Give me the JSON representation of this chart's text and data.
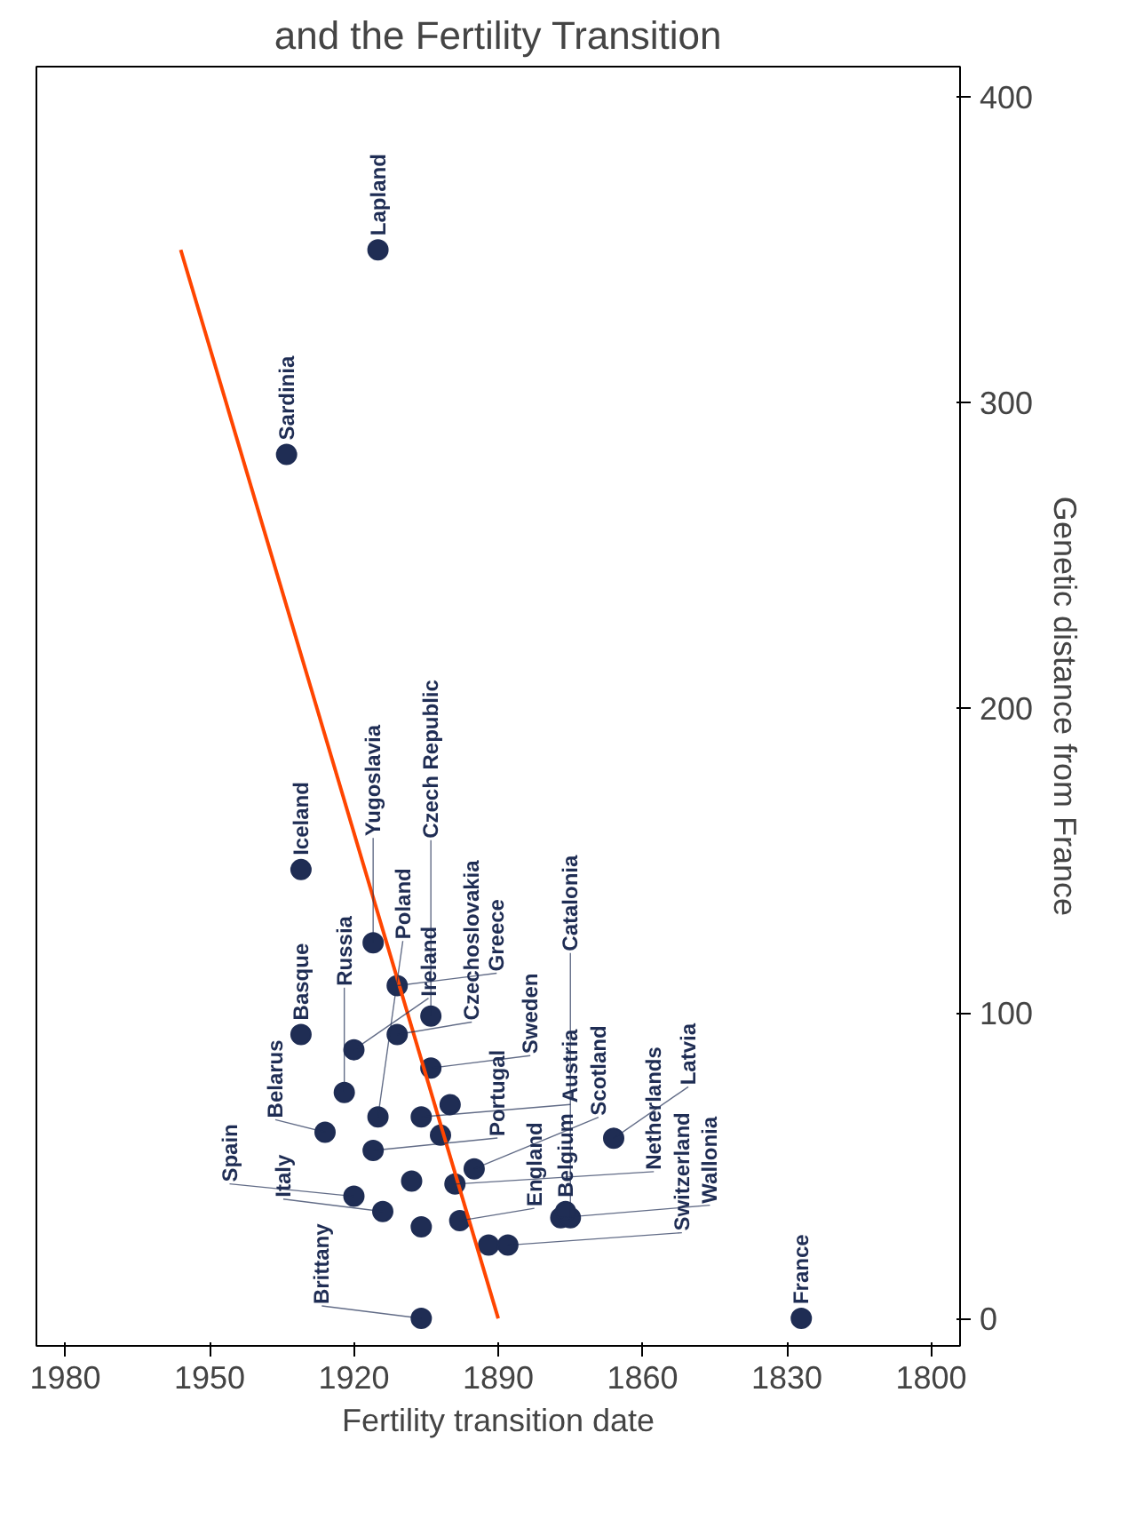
{
  "chart_data": {
    "type": "scatter",
    "title": "and the Fertility Transition",
    "xlabel": "Fertility transition date",
    "ylabel": "Genetic distance from France",
    "xlim": [
      1986,
      1794
    ],
    "xticks": [
      1980,
      1950,
      1920,
      1890,
      1860,
      1830,
      1800
    ],
    "ylim": [
      -9,
      410
    ],
    "yticks": [
      0,
      100,
      200,
      300,
      400
    ],
    "grid": false,
    "series": [
      {
        "marker": "circle",
        "color": "#1f2d54",
        "x": [
          1915,
          1934,
          1931,
          1931,
          1926,
          1922,
          1920,
          1920,
          1914,
          1916,
          1915,
          1911,
          1916,
          1911,
          1904,
          1904,
          1906,
          1906,
          1899,
          1898,
          1895,
          1888,
          1892,
          1877,
          1875,
          1876,
          1866,
          1827,
          1906,
          1902,
          1900,
          1908
        ],
        "values": [
          350,
          283,
          147,
          93,
          61,
          74,
          88,
          40,
          35,
          55,
          66,
          93,
          123,
          109,
          99,
          82,
          66,
          0,
          44,
          32,
          49,
          24,
          24,
          33,
          33,
          35,
          59,
          0,
          30,
          60,
          70,
          45
        ]
      },
      {
        "type": "line",
        "color": "#ff4500",
        "x": [
          1890,
          1956
        ],
        "values": [
          0,
          350
        ]
      }
    ],
    "annotations": [
      {
        "text": "Lapland",
        "x": 1915,
        "y": 350
      },
      {
        "text": "Sardinia",
        "x": 1934,
        "y": 283
      },
      {
        "text": "Iceland",
        "x": 1931,
        "y": 147
      },
      {
        "text": "Basque",
        "x": 1931,
        "y": 93
      },
      {
        "text": "Belarus",
        "x": 1926,
        "y": 61
      },
      {
        "text": "Russia",
        "x": 1922,
        "y": 74
      },
      {
        "text": "Ireland",
        "x": 1920,
        "y": 88
      },
      {
        "text": "Spain",
        "x": 1920,
        "y": 40
      },
      {
        "text": "Italy",
        "x": 1914,
        "y": 35
      },
      {
        "text": "Portugal",
        "x": 1916,
        "y": 55
      },
      {
        "text": "Poland",
        "x": 1915,
        "y": 66
      },
      {
        "text": "Czechoslovakia",
        "x": 1911,
        "y": 93
      },
      {
        "text": "Yugoslavia",
        "x": 1916,
        "y": 123
      },
      {
        "text": "Greece",
        "x": 1911,
        "y": 109
      },
      {
        "text": "Czech Republic",
        "x": 1904,
        "y": 99
      },
      {
        "text": "Sweden",
        "x": 1904,
        "y": 82
      },
      {
        "text": "Austria",
        "x": 1906,
        "y": 66
      },
      {
        "text": "Brittany",
        "x": 1906,
        "y": 0
      },
      {
        "text": "Netherlands",
        "x": 1899,
        "y": 44
      },
      {
        "text": "England",
        "x": 1898,
        "y": 32
      },
      {
        "text": "Scotland",
        "x": 1895,
        "y": 49
      },
      {
        "text": "Switzerland",
        "x": 1888,
        "y": 24
      },
      {
        "text": "Wallonia",
        "x": 1877,
        "y": 33
      },
      {
        "text": "Catalonia",
        "x": 1875,
        "y": 33
      },
      {
        "text": "Belgium",
        "x": 1876,
        "y": 35
      },
      {
        "text": "Latvia",
        "x": 1866,
        "y": 59
      },
      {
        "text": "France",
        "x": 1827,
        "y": 0
      }
    ]
  }
}
